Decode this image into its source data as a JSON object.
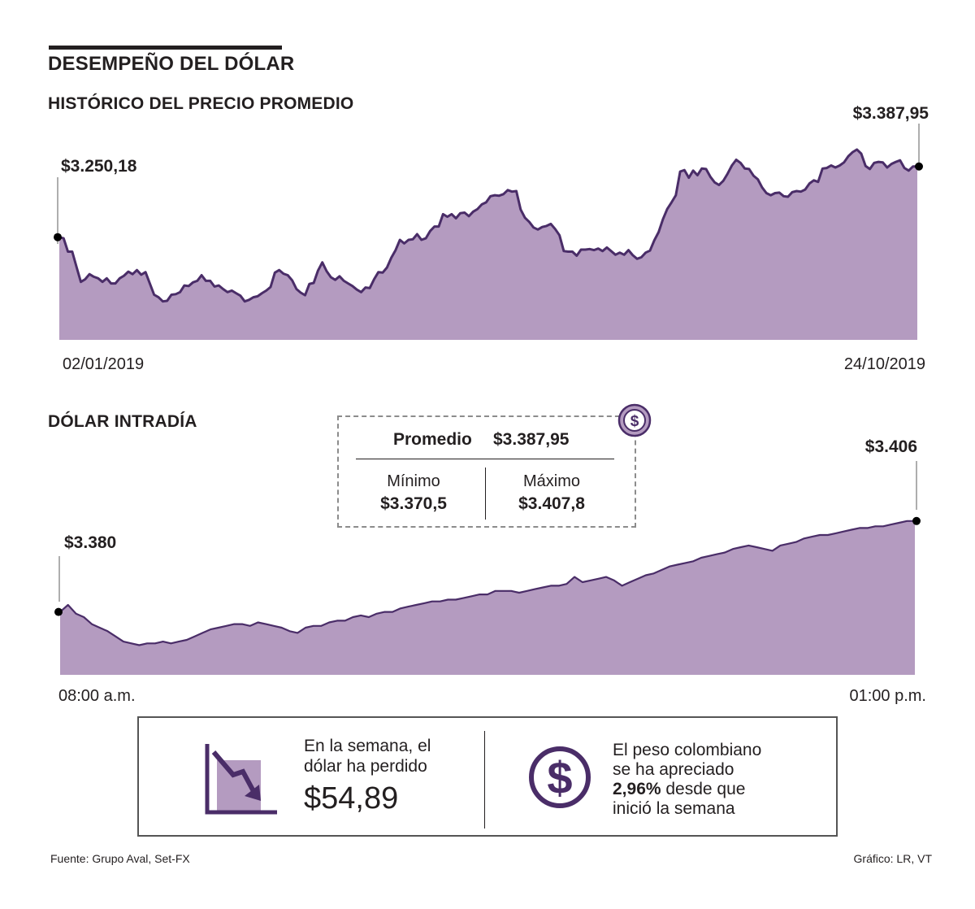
{
  "header": {
    "title": "DESEMPEÑO DEL DÓLAR"
  },
  "chart_data": [
    {
      "type": "area",
      "title": "HISTÓRICO DEL PRECIO PROMEDIO",
      "x_start_label": "02/01/2019",
      "x_end_label": "24/10/2019",
      "start_value_label": "$3.250,18",
      "end_value_label": "$3.387,95",
      "ylim": [
        3050,
        3470
      ],
      "values": [
        3250.18,
        3248,
        3222,
        3222,
        3192,
        3163,
        3168,
        3178,
        3173,
        3170,
        3163,
        3170,
        3160,
        3160,
        3170,
        3175,
        3183,
        3178,
        3186,
        3177,
        3182,
        3160,
        3138,
        3133,
        3125,
        3126,
        3138,
        3139,
        3143,
        3156,
        3155,
        3162,
        3165,
        3176,
        3165,
        3165,
        3154,
        3156,
        3149,
        3143,
        3146,
        3141,
        3136,
        3125,
        3128,
        3133,
        3135,
        3141,
        3146,
        3153,
        3181,
        3186,
        3179,
        3176,
        3166,
        3149,
        3142,
        3137,
        3159,
        3161,
        3185,
        3201,
        3184,
        3172,
        3167,
        3174,
        3165,
        3160,
        3155,
        3148,
        3143,
        3152,
        3151,
        3168,
        3182,
        3181,
        3191,
        3210,
        3225,
        3245,
        3238,
        3245,
        3246,
        3256,
        3245,
        3248,
        3262,
        3271,
        3271,
        3295,
        3290,
        3295,
        3287,
        3297,
        3298,
        3291,
        3300,
        3305,
        3314,
        3318,
        3330,
        3332,
        3331,
        3334,
        3342,
        3339,
        3340,
        3304,
        3288,
        3280,
        3269,
        3265,
        3270,
        3272,
        3276,
        3266,
        3254,
        3223,
        3222,
        3222,
        3214,
        3226,
        3226,
        3227,
        3225,
        3228,
        3223,
        3230,
        3223,
        3216,
        3220,
        3216,
        3225,
        3215,
        3208,
        3211,
        3220,
        3224,
        3244,
        3260,
        3285,
        3305,
        3318,
        3332,
        3378,
        3381,
        3366,
        3380,
        3371,
        3384,
        3383,
        3368,
        3357,
        3352,
        3360,
        3374,
        3390,
        3401,
        3395,
        3384,
        3383,
        3370,
        3363,
        3347,
        3336,
        3332,
        3336,
        3337,
        3330,
        3329,
        3338,
        3340,
        3339,
        3343,
        3355,
        3361,
        3358,
        3384,
        3385,
        3390,
        3386,
        3390,
        3396,
        3408,
        3416,
        3421,
        3413,
        3389,
        3383,
        3395,
        3397,
        3396,
        3386,
        3393,
        3397,
        3400,
        3385,
        3380,
        3388,
        3387.95
      ]
    },
    {
      "type": "area",
      "title": "DÓLAR INTRADÍA",
      "x_start_label": "08:00 a.m.",
      "x_end_label": "01:00 p.m.",
      "start_value_label": "$3.380",
      "end_value_label": "$3.406",
      "ylim": [
        3362,
        3412
      ],
      "values": [
        3380,
        3382,
        3379.5,
        3378.5,
        3376.5,
        3375.5,
        3374.5,
        3373,
        3371.5,
        3371,
        3370.5,
        3371,
        3371,
        3371.5,
        3371,
        3371.5,
        3372,
        3373,
        3374,
        3375,
        3375.5,
        3376,
        3376.5,
        3376.5,
        3376,
        3377,
        3376.5,
        3376,
        3375.5,
        3374.5,
        3374,
        3375.5,
        3376,
        3376,
        3377,
        3377.5,
        3377.5,
        3378.5,
        3379,
        3378.5,
        3379.5,
        3380,
        3380,
        3381,
        3381.5,
        3382,
        3382.5,
        3383,
        3383,
        3383.5,
        3383.5,
        3384,
        3384.5,
        3385,
        3385,
        3386,
        3386,
        3386,
        3385.5,
        3386,
        3386.5,
        3387,
        3387.5,
        3387.5,
        3388,
        3390,
        3388.5,
        3389,
        3389.5,
        3390,
        3389,
        3387.5,
        3388.5,
        3389.5,
        3390.5,
        3391,
        3392,
        3393,
        3393.5,
        3394,
        3394.5,
        3395.5,
        3396,
        3396.5,
        3397,
        3398,
        3398.5,
        3399,
        3398.5,
        3398,
        3397.5,
        3399,
        3399.5,
        3400,
        3401,
        3401.5,
        3402,
        3402,
        3402.5,
        3403,
        3403.5,
        3404,
        3404,
        3404.5,
        3404.5,
        3405,
        3405.5,
        3406,
        3406
      ]
    }
  ],
  "stats": {
    "avg_label": "Promedio",
    "avg_value": "$3.387,95",
    "min_label": "Mínimo",
    "min_value": "$3.370,5",
    "max_label": "Máximo",
    "max_value": "$3.407,8"
  },
  "info": {
    "left_text_line1": "En la semana, el",
    "left_text_line2": "dólar ha perdido",
    "left_value": "$54,89",
    "right_line1": "El peso colombiano",
    "right_line2": "se ha apreciado",
    "right_bold": "2,96%",
    "right_line3_rest": " desde que",
    "right_line4": "inició la semana"
  },
  "footer": {
    "source": "Fuente: Grupo Aval, Set-FX",
    "credit": "Gráfico: LR, VT"
  },
  "colors": {
    "area_fill": "#b49bc0",
    "line": "#4a2d68",
    "dark": "#231f20"
  },
  "icons": {
    "dollar_badge": "dollar-coin-icon",
    "trend": "trend-down-icon",
    "info_dollar": "dollar-circle-icon"
  }
}
